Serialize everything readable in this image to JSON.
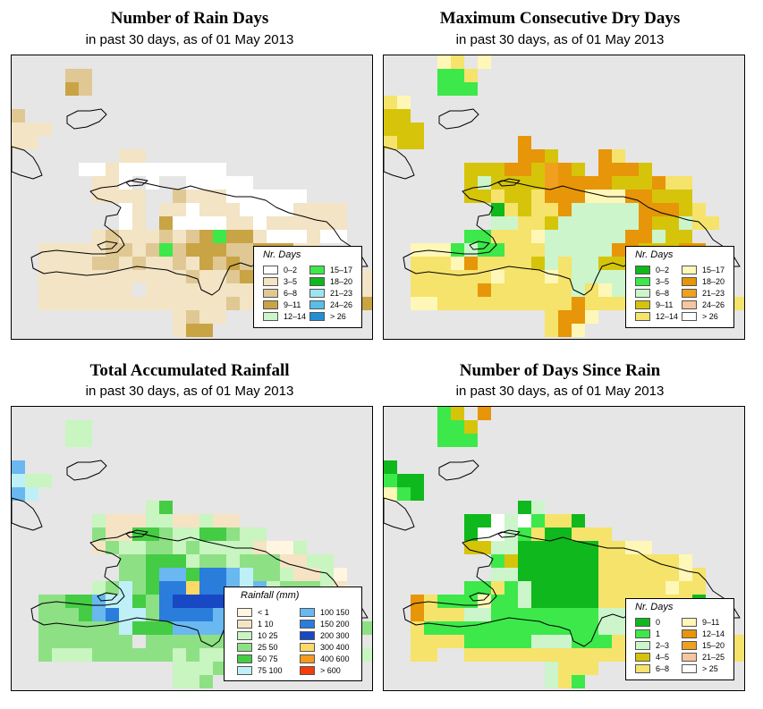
{
  "panels": [
    {
      "id": "rain-days",
      "title": "Number of Rain Days",
      "subtitle": "in past 30 days, as of  01 May 2013",
      "legend_title": "Nr. Days",
      "legend_entries": [
        {
          "label": "0–2",
          "color": "#ffffff"
        },
        {
          "label": "3–5",
          "color": "#f2e4c4"
        },
        {
          "label": "6–8",
          "color": "#e0c894"
        },
        {
          "label": "9–11",
          "color": "#c9a445"
        },
        {
          "label": "12–14",
          "color": "#ccf5cc"
        },
        {
          "label": "15–17",
          "color": "#3de84a"
        },
        {
          "label": "18–20",
          "color": "#0fb81c"
        },
        {
          "label": "21–23",
          "color": "#9ee3f2"
        },
        {
          "label": "24–26",
          "color": "#58bde8"
        },
        {
          "label": "> 26",
          "color": "#1e90d6"
        }
      ],
      "grid_values": [
        "...........................",
        "....cc.....................",
        "....dc.....................",
        "...........................",
        "c..........................",
        "bbb........................",
        "bb.........................",
        "........bb.................",
        ".....aabaaaaaaaa...........",
        "......bba.a..aaaaa.........",
        "......bbbb..cbbbaaaaaa.....",
        "........ab.bbabbbaaaabbbb..",
        "........ab.daaaabbabbbbbb..",
        "......bcbbbcbcdfddbaaabaa..",
        "..bbbbbccbcfcdddccdddbb....",
        "..bbbbccbcbbcbdcdcbbbbbaa..",
        "..bbbbbbbbbbbcbbcdcbbbbbbbb",
        "..bbbbbbb.bbbbbbbbbbbbbbbbb",
        "..bbbbbbbbbbbbbbcbbbbbbbbbd",
        "............bcbb...........",
        "............bdd............"
      ]
    },
    {
      "id": "max-dry-days",
      "title": "Maximum Consecutive Dry Days",
      "subtitle": "in past 30 days, as of  01 May 2013",
      "legend_title": "Nr. Days",
      "legend_entries": [
        {
          "label": "0–2",
          "color": "#0fb81c"
        },
        {
          "label": "3–5",
          "color": "#3de84a"
        },
        {
          "label": "6–8",
          "color": "#ccf5cc"
        },
        {
          "label": "9–11",
          "color": "#d6c40a"
        },
        {
          "label": "12–14",
          "color": "#f5e36b"
        },
        {
          "label": "15–17",
          "color": "#fff7b8"
        },
        {
          "label": "18–20",
          "color": "#e69608"
        },
        {
          "label": "21–23",
          "color": "#f0a01e"
        },
        {
          "label": "24–26",
          "color": "#f7c6a0"
        },
        {
          "label": "> 26",
          "color": "#ffffff"
        }
      ],
      "grid_values": [
        "....fe.f...................",
        "....bbe....................",
        "....bbb....................",
        "ef.........................",
        "dd.........................",
        "ddd........................",
        "edd.......g................",
        "..........ggd...ge.........",
        "......dddggdhgd.gggd.......",
        "......dcddddhggggdddgee....",
        "......ddeddegggfffggddd....",
        "........aedeegcccccgggde...",
        "........cceedccccccgddcee..",
        "......bbeeefccccccggcdd....",
        "..fffbcbbeeecccccggdddgg...",
        "..eeefgeeeedceccddeggggga..",
        "..eeeeeefeeefecccccccgecb..",
        "..eeeeegeeeeeecefcccecfecb.",
        "..ffeeeeeeeeeegeeeeeeeeeeee",
        "............eggf...........",
        "............egf............"
      ]
    },
    {
      "id": "total-rainfall",
      "title": "Total Accumulated Rainfall",
      "subtitle": "in past 30 days, as of  01 May 2013",
      "legend_title": "Rainfall (mm)",
      "legend_entries": [
        {
          "label": "< 1",
          "color": "#fff5e1"
        },
        {
          "label": "1    10",
          "color": "#f5e3c4"
        },
        {
          "label": "10    25",
          "color": "#c8f5c0"
        },
        {
          "label": "25    50",
          "color": "#8ee085"
        },
        {
          "label": "50    75",
          "color": "#44cc44"
        },
        {
          "label": "75    100",
          "color": "#bff0f7"
        },
        {
          "label": "100    150",
          "color": "#6ab8f0"
        },
        {
          "label": "150    200",
          "color": "#2a7ddb"
        },
        {
          "label": "200    300",
          "color": "#1848c4"
        },
        {
          "label": "300    400",
          "color": "#ffd966"
        },
        {
          "label": "400    600",
          "color": "#f59a1e"
        },
        {
          "label": "> 600",
          "color": "#f53c0a"
        }
      ],
      "grid_values": [
        "...........................",
        "....cc.....................",
        "....cc.....................",
        "...........................",
        "g..........................",
        "fcc........................",
        "gf.........................",
        "..........ce...............",
        "......cbbbccbbcbb..........",
        "......dbbeedcceedcc........",
        "......bdccddcdccccbaac.....",
        "........ddeeecddcdddbbcc...",
        "........ddeggehhgfddcbbca..",
        "......cdfdehhjhhgfgcdddcb..",
        "..ddeegffedhiiiighheegca...",
        "..dddeghffdhhhhggfgeeeccc..",
        "..ddddddfeeeggggffdcccccbbd",
        "..ddddddd.dddddddccccdcaac.",
        "..dcccddddddcdccddcccccaaac",
        "............cccd...........",
        "............ccd............"
      ]
    },
    {
      "id": "days-since-rain",
      "title": "Number of Days Since Rain",
      "subtitle": "in past 30 days, as of  01 May 2013",
      "legend_title": "Nr. Days",
      "legend_entries": [
        {
          "label": "0",
          "color": "#0fb81c"
        },
        {
          "label": "1",
          "color": "#3de84a"
        },
        {
          "label": "2–3",
          "color": "#ccf5cc"
        },
        {
          "label": "4–5",
          "color": "#d6c40a"
        },
        {
          "label": "6–8",
          "color": "#f5e36b"
        },
        {
          "label": "9–11",
          "color": "#fff7b8"
        },
        {
          "label": "12–14",
          "color": "#e69608"
        },
        {
          "label": "15–20",
          "color": "#f0a01e"
        },
        {
          "label": "21–25",
          "color": "#f7c6a0"
        },
        {
          "label": "> 25",
          "color": "#ffffff"
        }
      ],
      "grid_values": [
        "....bd.g...................",
        "....bbd....................",
        "....bbb....................",
        "...........................",
        "a..........................",
        "baa........................",
        "fba........................",
        "..........ac...............",
        "......aajcjbeea............",
        "......ajjcbeaaeee..........",
        "......ddccaaaaaaeeff.......",
        "........bdaaaaaaeeeeeef....",
        "........ccaaaaaaeeeeeefe...",
        "......bbebcaaaaaeeeeefee...",
        "..gebbbfbbcaaaaaeeeeeeea...",
        "..geeeccbbbbbbbbccfeeeeea..",
        "..ebbbbbbbbbbbbbcceeeeeeea.",
        "..eeeebbbbbcccbbbeeeeefeeee",
        "..ee..eeeeeeeeeeeeeeeeeeeee",
        "............ceee...........",
        "............ceb............"
      ]
    }
  ]
}
